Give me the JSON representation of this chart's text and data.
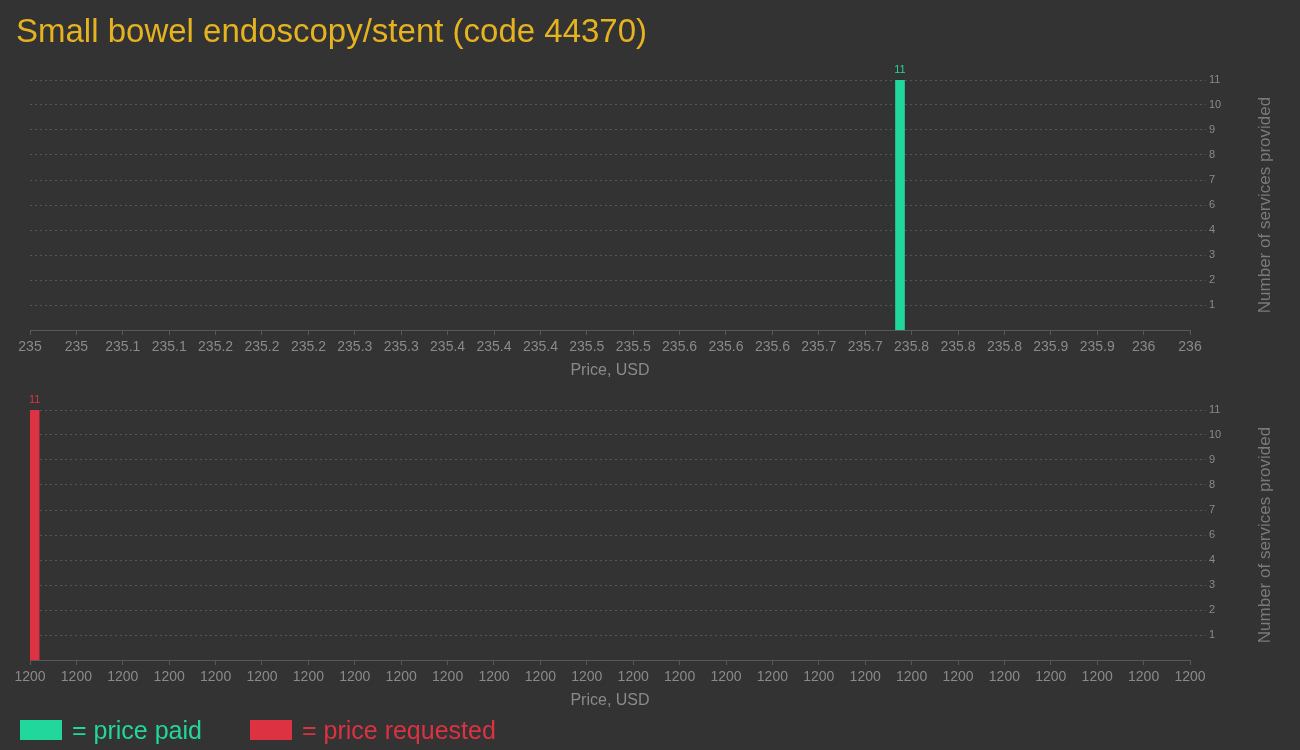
{
  "chart_data": [
    {
      "type": "bar",
      "title": "Small bowel endoscopy/stent (code 44370)",
      "xlabel": "Price, USD",
      "ylabel": "Number of services provided",
      "x": [
        235.75
      ],
      "series": [
        {
          "name": "= price paid",
          "color": "#21d79b",
          "values": [
            11
          ]
        }
      ],
      "xlim": [
        235,
        236
      ],
      "xticks": [
        235,
        {
          "value": 235.04,
          "label": "235"
        },
        {
          "value": 235.08,
          "label": "235.1"
        },
        {
          "value": 235.12,
          "label": "235.1"
        },
        {
          "value": 235.16,
          "label": "235.2"
        },
        235.2,
        {
          "value": 235.24,
          "label": "235.2"
        },
        {
          "value": 235.28,
          "label": "235.3"
        },
        {
          "value": 235.32,
          "label": "235.3"
        },
        {
          "value": 235.36,
          "label": "235.4"
        },
        235.4,
        {
          "value": 235.44,
          "label": "235.4"
        },
        {
          "value": 235.48,
          "label": "235.5"
        },
        {
          "value": 235.52,
          "label": "235.5"
        },
        {
          "value": 235.56,
          "label": "235.6"
        },
        235.6,
        {
          "value": 235.64,
          "label": "235.6"
        },
        {
          "value": 235.68,
          "label": "235.7"
        },
        {
          "value": 235.72,
          "label": "235.7"
        },
        {
          "value": 235.76,
          "label": "235.8"
        },
        235.8,
        {
          "value": 235.84,
          "label": "235.8"
        },
        {
          "value": 235.88,
          "label": "235.9"
        },
        {
          "value": 235.92,
          "label": "235.9"
        },
        {
          "value": 235.96,
          "label": "236"
        },
        236
      ],
      "ylim": [
        0,
        11
      ],
      "yticks": [
        {
          "value": 1.1,
          "label": "1"
        },
        {
          "value": 2.2,
          "label": "2"
        },
        {
          "value": 3.3,
          "label": "3"
        },
        {
          "value": 4.4,
          "label": "4"
        },
        {
          "value": 5.5,
          "label": "6"
        },
        {
          "value": 6.6,
          "label": "7"
        },
        {
          "value": 7.7,
          "label": "8"
        },
        {
          "value": 8.8,
          "label": "9"
        },
        {
          "value": 9.9,
          "label": "10"
        },
        11
      ],
      "grid": "y",
      "data_labels": true,
      "legend": "bottom"
    },
    {
      "type": "bar",
      "xlabel": "Price, USD",
      "ylabel": "Number of services provided",
      "x": [
        1200.001
      ],
      "series": [
        {
          "name": "= price requested",
          "color": "#dc3242",
          "values": [
            11
          ]
        }
      ],
      "xlim": [
        1200,
        1200.25
      ],
      "xticks": [
        1200,
        {
          "value": 1200.01,
          "label": "1200"
        },
        {
          "value": 1200.02,
          "label": "1200"
        },
        {
          "value": 1200.03,
          "label": "1200"
        },
        {
          "value": 1200.04,
          "label": "1200"
        },
        {
          "value": 1200.05,
          "label": "1200"
        },
        {
          "value": 1200.06,
          "label": "1200"
        },
        {
          "value": 1200.07,
          "label": "1200"
        },
        {
          "value": 1200.08,
          "label": "1200"
        },
        {
          "value": 1200.09,
          "label": "1200"
        },
        {
          "value": 1200.1,
          "label": "1200"
        },
        {
          "value": 1200.11,
          "label": "1200"
        },
        {
          "value": 1200.12,
          "label": "1200"
        },
        {
          "value": 1200.13,
          "label": "1200"
        },
        {
          "value": 1200.14,
          "label": "1200"
        },
        {
          "value": 1200.15,
          "label": "1200"
        },
        {
          "value": 1200.16,
          "label": "1200"
        },
        {
          "value": 1200.17,
          "label": "1200"
        },
        {
          "value": 1200.18,
          "label": "1200"
        },
        {
          "value": 1200.19,
          "label": "1200"
        },
        {
          "value": 1200.2,
          "label": "1200"
        },
        {
          "value": 1200.21,
          "label": "1200"
        },
        {
          "value": 1200.22,
          "label": "1200"
        },
        {
          "value": 1200.23,
          "label": "1200"
        },
        {
          "value": 1200.24,
          "label": "1200"
        },
        {
          "value": 1200.25,
          "label": "1200"
        }
      ],
      "ylim": [
        0,
        11
      ],
      "yticks": [
        {
          "value": 1.1,
          "label": "1"
        },
        {
          "value": 2.2,
          "label": "2"
        },
        {
          "value": 3.3,
          "label": "3"
        },
        {
          "value": 4.4,
          "label": "4"
        },
        {
          "value": 5.5,
          "label": "6"
        },
        {
          "value": 6.6,
          "label": "7"
        },
        {
          "value": 7.7,
          "label": "8"
        },
        {
          "value": 8.8,
          "label": "9"
        },
        {
          "value": 9.9,
          "label": "10"
        },
        11
      ],
      "grid": "y",
      "data_labels": true,
      "legend": "bottom"
    }
  ]
}
